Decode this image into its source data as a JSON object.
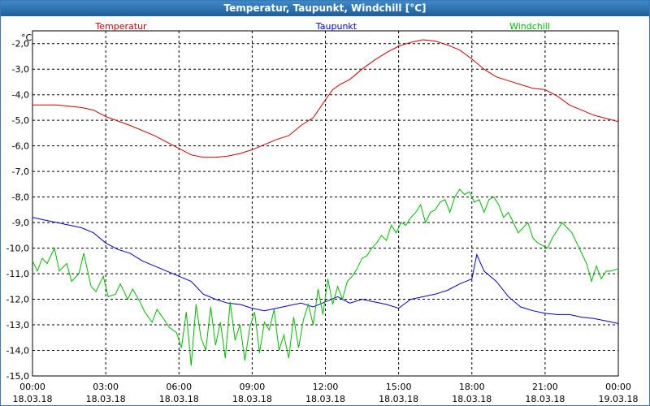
{
  "window": {
    "title": "Temperatur, Taupunkt, Windchill [°C]"
  },
  "chart_data": {
    "type": "line",
    "title": "Temperatur, Taupunkt, Windchill [°C]",
    "ylabel": "°C",
    "ylim": [
      -15.0,
      -1.5
    ],
    "xlim": [
      0,
      24
    ],
    "grid": true,
    "yticks": [
      {
        "v": -2.0,
        "label": "-2,0"
      },
      {
        "v": -3.0,
        "label": "-3,0"
      },
      {
        "v": -4.0,
        "label": "-4,0"
      },
      {
        "v": -5.0,
        "label": "-5,0"
      },
      {
        "v": -6.0,
        "label": "-6,0"
      },
      {
        "v": -7.0,
        "label": "-7,0"
      },
      {
        "v": -8.0,
        "label": "-8,0"
      },
      {
        "v": -9.0,
        "label": "-9,0"
      },
      {
        "v": -10.0,
        "label": "-10,0"
      },
      {
        "v": -11.0,
        "label": "-11,0"
      },
      {
        "v": -12.0,
        "label": "-12,0"
      },
      {
        "v": -13.0,
        "label": "-13,0"
      },
      {
        "v": -14.0,
        "label": "-14,0"
      },
      {
        "v": -15.0,
        "label": "-15,0"
      }
    ],
    "xticks": [
      {
        "h": 0,
        "time": "00:00",
        "date": "18.03.18"
      },
      {
        "h": 3,
        "time": "03:00",
        "date": "18.03.18"
      },
      {
        "h": 6,
        "time": "06:00",
        "date": "18.03.18"
      },
      {
        "h": 9,
        "time": "09:00",
        "date": "18.03.18"
      },
      {
        "h": 12,
        "time": "12:00",
        "date": "18.03.18"
      },
      {
        "h": 15,
        "time": "15:00",
        "date": "18.03.18"
      },
      {
        "h": 18,
        "time": "18:00",
        "date": "18.03.18"
      },
      {
        "h": 21,
        "time": "21:00",
        "date": "18.03.18"
      },
      {
        "h": 24,
        "time": "00:00",
        "date": "19.03.18"
      }
    ],
    "series": [
      {
        "name": "Temperatur",
        "color": "#cc0000",
        "legend_pos": "left",
        "x": [
          0,
          1,
          2,
          2.5,
          3,
          4,
          5,
          5.7,
          6,
          6.5,
          7,
          7.5,
          8,
          8.5,
          9,
          9.5,
          10,
          10.5,
          11,
          11.5,
          12,
          12.3,
          12.6,
          13,
          13.5,
          14,
          14.5,
          15,
          15.5,
          16,
          16.5,
          17,
          17.5,
          18,
          18.5,
          19,
          20,
          20.5,
          21,
          21.5,
          22,
          23,
          24
        ],
        "y": [
          -4.4,
          -4.4,
          -4.5,
          -4.6,
          -4.85,
          -5.2,
          -5.6,
          -5.95,
          -6.1,
          -6.35,
          -6.45,
          -6.45,
          -6.4,
          -6.3,
          -6.15,
          -5.95,
          -5.75,
          -5.6,
          -5.2,
          -4.9,
          -4.2,
          -3.8,
          -3.6,
          -3.4,
          -3.0,
          -2.65,
          -2.35,
          -2.1,
          -1.95,
          -1.85,
          -1.9,
          -2.05,
          -2.25,
          -2.6,
          -3.0,
          -3.3,
          -3.6,
          -3.75,
          -3.8,
          -4.05,
          -4.4,
          -4.8,
          -5.05
        ]
      },
      {
        "name": "Taupunkt",
        "color": "#0000cc",
        "legend_pos": "center",
        "x": [
          0,
          0.5,
          1,
          1.5,
          2,
          2.5,
          3,
          3.5,
          4,
          4.5,
          5,
          5.5,
          6,
          6.5,
          7,
          7.5,
          8,
          8.5,
          9,
          9.5,
          10,
          10.5,
          11,
          11.5,
          12,
          12.5,
          13,
          13.5,
          14,
          14.5,
          15,
          15.5,
          16,
          16.5,
          17,
          17.5,
          18,
          18.2,
          18.5,
          19,
          19.5,
          20,
          20.5,
          21,
          21.5,
          22,
          22.5,
          23,
          23.5,
          24
        ],
        "y": [
          -8.8,
          -8.9,
          -9.0,
          -9.1,
          -9.2,
          -9.4,
          -9.8,
          -10.05,
          -10.2,
          -10.5,
          -10.7,
          -10.9,
          -11.1,
          -11.3,
          -11.8,
          -12.0,
          -12.15,
          -12.2,
          -12.35,
          -12.45,
          -12.35,
          -12.25,
          -12.15,
          -12.3,
          -12.1,
          -11.9,
          -12.15,
          -12.0,
          -12.1,
          -12.2,
          -12.35,
          -12.0,
          -11.9,
          -11.8,
          -11.65,
          -11.4,
          -11.2,
          -10.25,
          -10.9,
          -11.3,
          -11.9,
          -12.3,
          -12.45,
          -12.55,
          -12.6,
          -12.6,
          -12.7,
          -12.75,
          -12.85,
          -12.95
        ]
      },
      {
        "name": "Windchill",
        "color": "#00bb00",
        "legend_pos": "right",
        "x": [
          0,
          0.2,
          0.4,
          0.6,
          0.9,
          1.1,
          1.4,
          1.6,
          1.9,
          2.1,
          2.4,
          2.6,
          2.9,
          3.1,
          3.4,
          3.6,
          3.9,
          4.1,
          4.4,
          4.6,
          4.9,
          5.1,
          5.4,
          5.6,
          5.9,
          6.1,
          6.3,
          6.5,
          6.7,
          6.9,
          7.1,
          7.3,
          7.5,
          7.7,
          7.9,
          8.1,
          8.3,
          8.5,
          8.7,
          8.9,
          9.1,
          9.3,
          9.5,
          9.7,
          9.9,
          10.1,
          10.3,
          10.5,
          10.7,
          10.9,
          11.1,
          11.3,
          11.5,
          11.7,
          11.9,
          12.1,
          12.3,
          12.5,
          12.7,
          12.9,
          13.1,
          13.3,
          13.5,
          13.7,
          13.9,
          14.1,
          14.3,
          14.5,
          14.7,
          14.9,
          15.1,
          15.3,
          15.5,
          15.7,
          15.9,
          16.1,
          16.3,
          16.5,
          16.7,
          16.9,
          17.1,
          17.3,
          17.5,
          17.7,
          17.9,
          18.1,
          18.3,
          18.5,
          18.7,
          18.9,
          19.1,
          19.3,
          19.5,
          19.7,
          19.9,
          20.1,
          20.3,
          20.5,
          20.7,
          20.9,
          21.1,
          21.3,
          21.5,
          21.7,
          21.9,
          22.1,
          22.3,
          22.5,
          22.7,
          22.9,
          23.1,
          23.3,
          23.5,
          23.7,
          24
        ],
        "y": [
          -10.5,
          -10.9,
          -10.4,
          -10.6,
          -10.0,
          -10.9,
          -10.6,
          -11.3,
          -11.0,
          -10.2,
          -11.5,
          -11.7,
          -11.1,
          -11.9,
          -11.8,
          -11.4,
          -12.0,
          -11.6,
          -12.1,
          -12.5,
          -12.9,
          -12.4,
          -12.8,
          -13.1,
          -13.3,
          -13.9,
          -12.5,
          -14.6,
          -12.2,
          -13.5,
          -14.0,
          -12.3,
          -13.8,
          -12.9,
          -14.3,
          -12.1,
          -13.6,
          -13.0,
          -14.4,
          -13.1,
          -12.5,
          -14.1,
          -12.9,
          -13.2,
          -12.4,
          -14.0,
          -13.4,
          -14.3,
          -12.7,
          -13.9,
          -12.8,
          -12.2,
          -13.0,
          -11.6,
          -12.6,
          -11.2,
          -12.2,
          -11.5,
          -12.0,
          -11.3,
          -11.1,
          -10.8,
          -10.4,
          -10.3,
          -10.0,
          -9.8,
          -9.5,
          -9.7,
          -9.1,
          -9.4,
          -9.0,
          -9.1,
          -8.8,
          -8.6,
          -8.3,
          -9.0,
          -8.6,
          -8.5,
          -8.2,
          -8.1,
          -8.6,
          -8.0,
          -7.7,
          -7.9,
          -7.8,
          -8.2,
          -8.1,
          -8.6,
          -8.1,
          -8.0,
          -8.3,
          -8.8,
          -8.6,
          -9.0,
          -9.4,
          -9.2,
          -9.0,
          -9.6,
          -9.8,
          -9.9,
          -10.0,
          -9.6,
          -9.3,
          -9.0,
          -9.2,
          -9.4,
          -9.8,
          -10.2,
          -10.6,
          -11.3,
          -10.7,
          -11.2,
          -10.9,
          -10.9,
          -10.8
        ]
      }
    ]
  }
}
